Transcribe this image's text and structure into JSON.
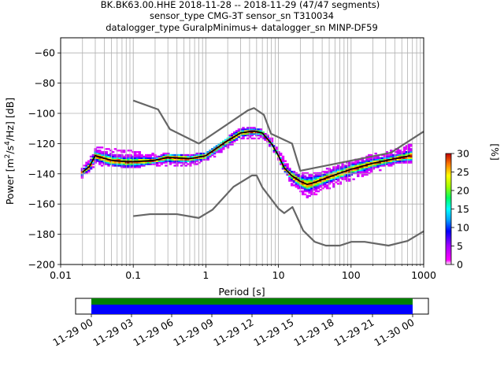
{
  "title_lines": [
    "BK.BK63.00.HHE   2018-11-28 -- 2018-11-29  (47/47 segments)",
    "sensor_type CMG-3T sensor_sn T310034",
    "datalogger_type GuralpMinimus+ datalogger_sn MINP-DF59"
  ],
  "chart_data": {
    "type": "heatmap",
    "title": "BK.BK63.00.HHE   2018-11-28 -- 2018-11-29  (47/47 segments)",
    "xlabel": "Period [s]",
    "ylabel": "Power [m^2/s^4/Hz] [dB]",
    "x_scale": "log",
    "xlim": [
      0.01,
      1000
    ],
    "ylim": [
      -200,
      -50
    ],
    "grid": true,
    "x_ticks": [
      "0.01",
      "0.1",
      "1",
      "10",
      "100",
      "1000"
    ],
    "y_ticks": [
      "−200",
      "−180",
      "−160",
      "−140",
      "−120",
      "−100",
      "−80",
      "−60"
    ],
    "colorbar": {
      "label": "[%]",
      "range": [
        0,
        30
      ],
      "ticks": [
        "0",
        "5",
        "10",
        "15",
        "20",
        "25",
        "30"
      ]
    },
    "series": [
      {
        "role": "new-high-noise-model",
        "color": "#666666",
        "points": [
          [
            0.1,
            -91.5
          ],
          [
            0.22,
            -97.4
          ],
          [
            0.32,
            -110.5
          ],
          [
            0.8,
            -120
          ],
          [
            3.8,
            -98
          ],
          [
            4.6,
            -96.5
          ],
          [
            6.3,
            -101
          ],
          [
            7.9,
            -113.5
          ],
          [
            15.4,
            -120
          ],
          [
            20,
            -138
          ],
          [
            354.8,
            -126
          ],
          [
            1000,
            -112
          ]
        ]
      },
      {
        "role": "new-low-noise-model",
        "color": "#666666",
        "points": [
          [
            0.1,
            -168
          ],
          [
            0.17,
            -166.7
          ],
          [
            0.4,
            -166.7
          ],
          [
            0.8,
            -169.2
          ],
          [
            1.24,
            -163.7
          ],
          [
            2.4,
            -148.6
          ],
          [
            4.3,
            -141.1
          ],
          [
            5,
            -141.1
          ],
          [
            6,
            -149
          ],
          [
            10,
            -163
          ],
          [
            12,
            -166
          ],
          [
            15.6,
            -162
          ],
          [
            21.9,
            -177.5
          ],
          [
            31.6,
            -185
          ],
          [
            45,
            -187.5
          ],
          [
            70,
            -187.5
          ],
          [
            101,
            -185
          ],
          [
            154,
            -185
          ],
          [
            328,
            -187.5
          ],
          [
            600,
            -184.4
          ],
          [
            1000,
            -178
          ]
        ]
      },
      {
        "role": "mode-psd",
        "color": "#000000",
        "points": [
          [
            0.02,
            -139
          ],
          [
            0.025,
            -135
          ],
          [
            0.03,
            -128
          ],
          [
            0.035,
            -129
          ],
          [
            0.05,
            -131
          ],
          [
            0.08,
            -132
          ],
          [
            0.1,
            -132
          ],
          [
            0.2,
            -131
          ],
          [
            0.3,
            -129
          ],
          [
            0.6,
            -130
          ],
          [
            1,
            -128
          ],
          [
            2,
            -118
          ],
          [
            3,
            -113
          ],
          [
            4,
            -112
          ],
          [
            5,
            -112
          ],
          [
            6,
            -113
          ],
          [
            8,
            -120
          ],
          [
            10,
            -128
          ],
          [
            12,
            -136
          ],
          [
            15,
            -141
          ],
          [
            20,
            -145
          ],
          [
            25,
            -147
          ],
          [
            30,
            -146
          ],
          [
            50,
            -142
          ],
          [
            100,
            -137
          ],
          [
            200,
            -133
          ],
          [
            400,
            -130
          ],
          [
            650,
            -128
          ]
        ]
      },
      {
        "role": "psd-density-envelope",
        "upper": [
          [
            0.02,
            -136
          ],
          [
            0.03,
            -122
          ],
          [
            0.1,
            -125
          ],
          [
            0.2,
            -126
          ],
          [
            0.5,
            -128
          ],
          [
            1,
            -126
          ],
          [
            2,
            -116
          ],
          [
            3,
            -110
          ],
          [
            5,
            -109
          ],
          [
            6,
            -111
          ],
          [
            8,
            -116
          ],
          [
            10,
            -124
          ],
          [
            15,
            -138
          ],
          [
            20,
            -140
          ],
          [
            40,
            -138
          ],
          [
            100,
            -132
          ],
          [
            200,
            -127
          ],
          [
            400,
            -124
          ],
          [
            650,
            -120
          ]
        ],
        "lower": [
          [
            0.02,
            -143
          ],
          [
            0.03,
            -135
          ],
          [
            0.1,
            -137
          ],
          [
            0.2,
            -135
          ],
          [
            0.5,
            -136
          ],
          [
            1,
            -133
          ],
          [
            2,
            -124
          ],
          [
            3,
            -118
          ],
          [
            5,
            -117
          ],
          [
            6,
            -117
          ],
          [
            8,
            -124
          ],
          [
            10,
            -132
          ],
          [
            15,
            -148
          ],
          [
            25,
            -157
          ],
          [
            40,
            -152
          ],
          [
            100,
            -145
          ],
          [
            200,
            -140
          ],
          [
            400,
            -134
          ],
          [
            650,
            -133
          ]
        ]
      }
    ],
    "time_axis": {
      "ticks": [
        "11-29 00",
        "11-29 03",
        "11-29 06",
        "11-29 09",
        "11-29 12",
        "11-29 15",
        "11-29 18",
        "11-29 21",
        "11-30 00"
      ],
      "coverage_colors": [
        "#008000",
        "#0000ff"
      ]
    }
  },
  "colors": {
    "noise_models": "#666666",
    "mode": "#000000",
    "grid": "#b0b0b0",
    "coverage_top": "#008000",
    "coverage_bottom": "#0000ff"
  }
}
